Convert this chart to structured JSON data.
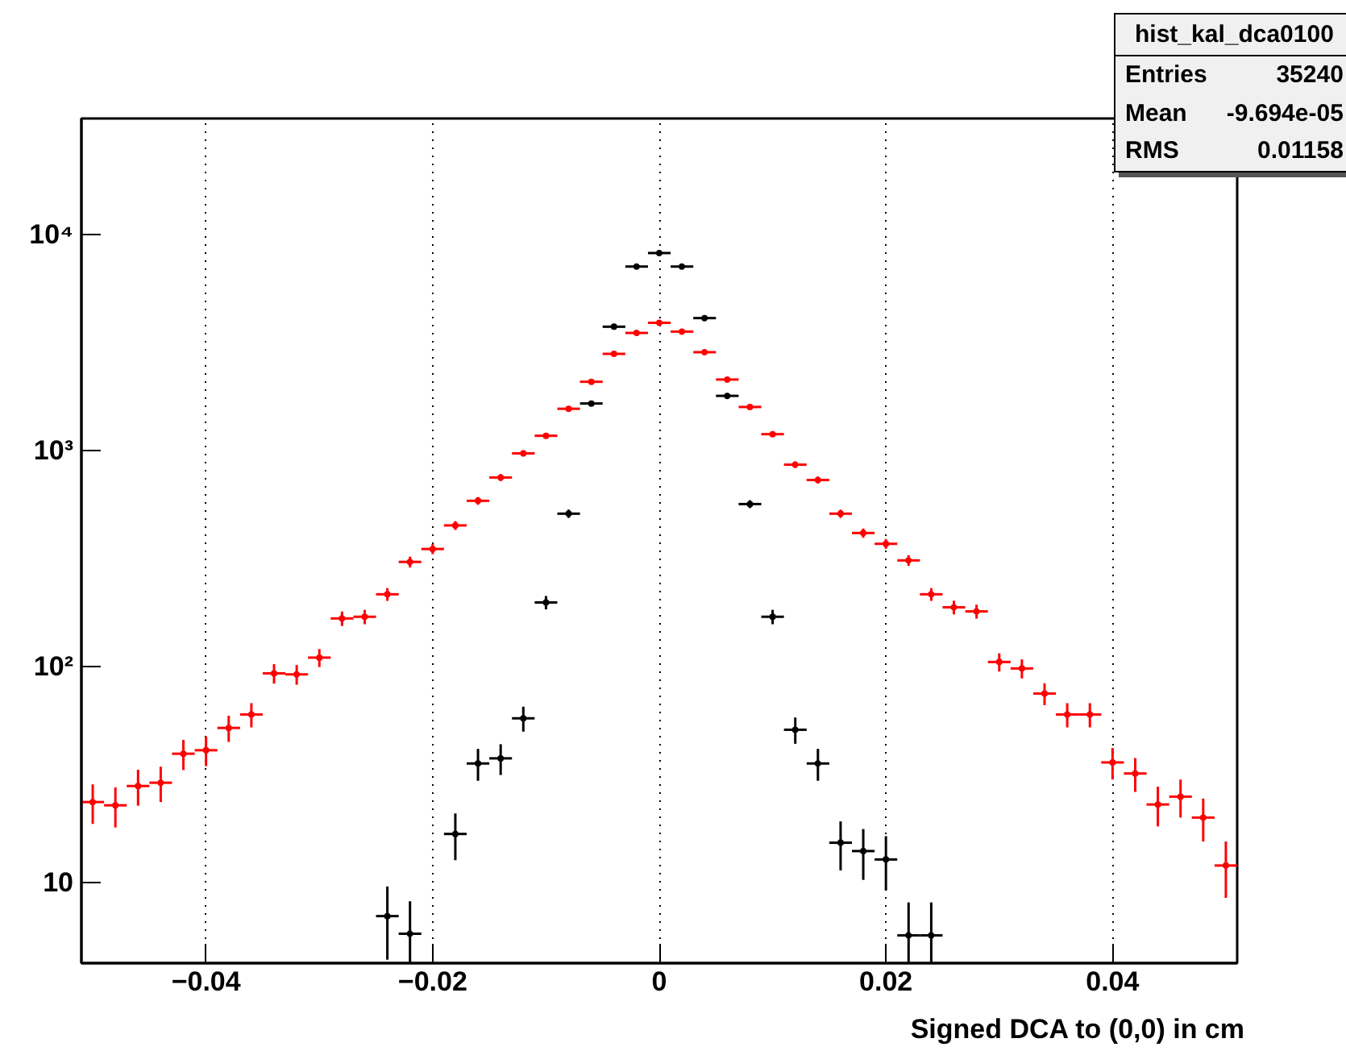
{
  "chart_data": {
    "type": "scatter",
    "xlabel": "Signed DCA to (0,0) in cm",
    "x": [
      -0.05,
      -0.048,
      -0.046,
      -0.044,
      -0.042,
      -0.04,
      -0.038,
      -0.036,
      -0.034,
      -0.032,
      -0.03,
      -0.028,
      -0.026,
      -0.024,
      -0.022,
      -0.02,
      -0.018,
      -0.016,
      -0.014,
      -0.012,
      -0.01,
      -0.008,
      -0.006,
      -0.004,
      -0.002,
      0.0,
      0.002,
      0.004,
      0.006,
      0.008,
      0.01,
      0.012,
      0.014,
      0.016,
      0.018,
      0.02,
      0.022,
      0.024,
      0.026,
      0.028,
      0.03,
      0.032,
      0.034,
      0.036,
      0.038,
      0.04,
      0.042,
      0.044,
      0.046,
      0.048,
      0.05
    ],
    "series": [
      {
        "color": "#ff0000",
        "values": [
          23.6,
          22.8,
          28,
          29,
          39.5,
          41,
          52,
          60,
          93,
          92,
          110,
          167,
          170,
          216,
          305,
          350,
          450,
          585,
          750,
          970,
          1170,
          1560,
          2080,
          2800,
          3500,
          3900,
          3550,
          2850,
          2130,
          1590,
          1190,
          860,
          730,
          510,
          415,
          370,
          310,
          216,
          188,
          180,
          105,
          98,
          75,
          60,
          60,
          36,
          32,
          23,
          25,
          20,
          12
        ],
        "xerrors": [
          0.001,
          0.001,
          0.001,
          0.001,
          0.001,
          0.001,
          0.001,
          0.001,
          0.001,
          0.001,
          0.001,
          0.001,
          0.001,
          0.001,
          0.001,
          0.001,
          0.001,
          0.001,
          0.001,
          0.001,
          0.001,
          0.001,
          0.001,
          0.001,
          0.001,
          0.001,
          0.001,
          0.001,
          0.001,
          0.001,
          0.001,
          0.001,
          0.001,
          0.001,
          0.001,
          0.001,
          0.001,
          0.001,
          0.001,
          0.001,
          0.001,
          0.001,
          0.001,
          0.001,
          0.001,
          0.001,
          0.001,
          0.001,
          0.001,
          0.001,
          0.001
        ],
        "errors": [
          4.9,
          4.8,
          5.3,
          5.4,
          6.3,
          6.4,
          7.2,
          7.7,
          9.6,
          9.6,
          10.5,
          12.9,
          13,
          14.7,
          17.5,
          18.7,
          21.2,
          24.2,
          27.4,
          31.1,
          34.2,
          39.5,
          45.6,
          52.9,
          59.2,
          62.4,
          59.6,
          53.4,
          46.2,
          39.9,
          34.5,
          29.3,
          27,
          22.6,
          20.4,
          19.2,
          17.6,
          14.7,
          13.7,
          13.4,
          10.2,
          9.9,
          8.7,
          7.7,
          7.7,
          6,
          5.7,
          4.8,
          5,
          4.5,
          3.5
        ]
      },
      {
        "color": "#000000",
        "values": [
          null,
          null,
          null,
          null,
          null,
          null,
          null,
          null,
          null,
          null,
          null,
          null,
          null,
          7,
          5.8,
          null,
          16.8,
          35.6,
          37.6,
          57.6,
          198,
          510,
          1650,
          3740,
          7100,
          8200,
          7100,
          4100,
          1790,
          565,
          170,
          51,
          35.6,
          15.3,
          14,
          12.8,
          5.7,
          5.7,
          null,
          null,
          null,
          null,
          null,
          null,
          null,
          null,
          null,
          null,
          null,
          null,
          null
        ],
        "xerrors": [
          null,
          null,
          null,
          null,
          null,
          null,
          null,
          null,
          null,
          null,
          null,
          null,
          null,
          0.001,
          0.001,
          null,
          0.001,
          0.001,
          0.001,
          0.001,
          0.001,
          0.001,
          0.001,
          0.001,
          0.001,
          0.001,
          0.001,
          0.001,
          0.001,
          0.001,
          0.001,
          0.001,
          0.001,
          0.001,
          0.001,
          0.001,
          0.001,
          0.001,
          null,
          null,
          null,
          null,
          null,
          null,
          null,
          null,
          null,
          null,
          null,
          null,
          null
        ],
        "errors": [
          null,
          null,
          null,
          null,
          null,
          null,
          null,
          null,
          null,
          null,
          null,
          null,
          null,
          2.6,
          2.4,
          null,
          4.1,
          6,
          6.1,
          7.6,
          14.1,
          22.6,
          40.6,
          61.2,
          84.3,
          90.6,
          84.3,
          64,
          42.3,
          23.8,
          13,
          7.1,
          6,
          3.9,
          3.7,
          3.6,
          2.4,
          2.4,
          null,
          null,
          null,
          null,
          null,
          null,
          null,
          null,
          null,
          null,
          null,
          null,
          null
        ]
      }
    ],
    "xlim": [
      -0.051,
      0.051
    ],
    "xticks": [
      -0.04,
      -0.02,
      0,
      0.02,
      0.04
    ],
    "ylim": [
      4.24,
      34400
    ],
    "yticks": [
      {
        "value": 10,
        "label": "10"
      },
      {
        "value": 100,
        "label": "10²"
      },
      {
        "value": 1000,
        "label": "10³"
      },
      {
        "value": 10000,
        "label": "10⁴"
      }
    ],
    "log": "y",
    "grid": "x",
    "marker": "circle",
    "annotations": [
      "hist_kal_dca0100",
      "Entries",
      "35240",
      "Mean",
      "-9.694e-05",
      "RMS",
      "0.01158"
    ]
  }
}
